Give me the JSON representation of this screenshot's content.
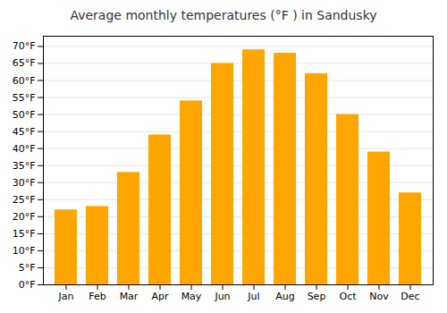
{
  "chart_data": {
    "type": "bar",
    "title": "Average monthly temperatures (°F ) in Sandusky",
    "categories": [
      "Jan",
      "Feb",
      "Mar",
      "Apr",
      "May",
      "Jun",
      "Jul",
      "Aug",
      "Sep",
      "Oct",
      "Nov",
      "Dec"
    ],
    "values": [
      22,
      23,
      33,
      44,
      54,
      65,
      69,
      68,
      62,
      50,
      39,
      27
    ],
    "color": "#FFA500",
    "ylim": [
      0,
      73
    ],
    "yticks": [
      {
        "value": 0,
        "label": "0°F"
      },
      {
        "value": 5,
        "label": "5°F"
      },
      {
        "value": 10,
        "label": "10°F"
      },
      {
        "value": 15,
        "label": "15°F"
      },
      {
        "value": 20,
        "label": "20°F"
      },
      {
        "value": 25,
        "label": "25°F"
      },
      {
        "value": 30,
        "label": "30°F"
      },
      {
        "value": 35,
        "label": "35°F"
      },
      {
        "value": 40,
        "label": "40°F"
      },
      {
        "value": 45,
        "label": "45°F"
      },
      {
        "value": 50,
        "label": "50°F"
      },
      {
        "value": 55,
        "label": "55°F"
      },
      {
        "value": 60,
        "label": "60°F"
      },
      {
        "value": 65,
        "label": "65°F"
      },
      {
        "value": 70,
        "label": "70°F"
      }
    ],
    "grid": true
  }
}
